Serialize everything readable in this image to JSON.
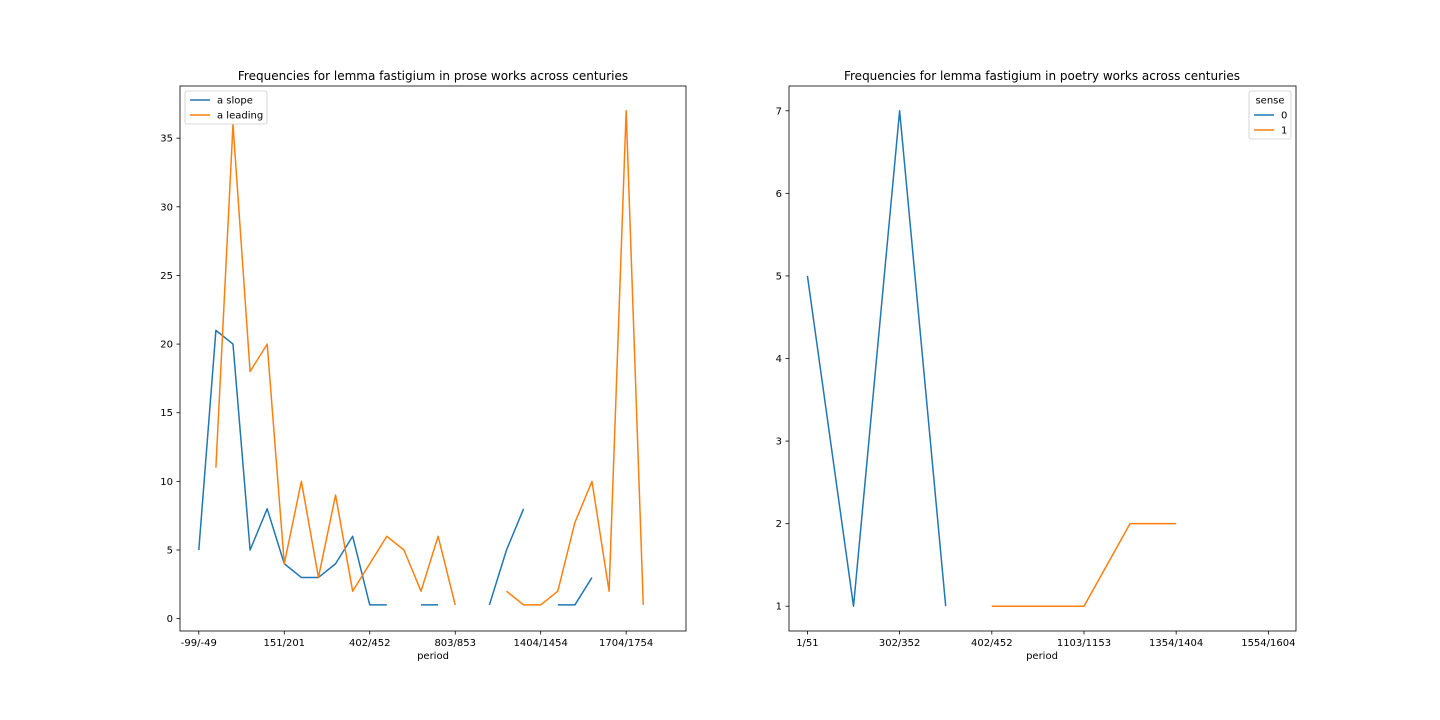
{
  "chart_data": [
    {
      "type": "line",
      "title": "Frequencies for lemma fastigium in prose works across centuries",
      "xlabel": "period",
      "ylabel": "",
      "ylim": [
        -0.9,
        38.8
      ],
      "yticks": [
        0,
        5,
        10,
        15,
        20,
        25,
        30,
        35
      ],
      "xlim": [
        -1.1,
        28.5
      ],
      "x_tick_positions": [
        0,
        5,
        10,
        15,
        20,
        25
      ],
      "x_tick_labels": [
        "-99/-49",
        "151/201",
        "402/452",
        "803/853",
        "1404/1454",
        "1704/1754"
      ],
      "legend": {
        "title": "",
        "position": "upper-left",
        "entries": [
          "a slope",
          "a leading"
        ]
      },
      "series": [
        {
          "name": "a slope",
          "color": "#1f77b4",
          "x": [
            0,
            1,
            2,
            3,
            4,
            5,
            6,
            7,
            8,
            9,
            10,
            11,
            12,
            13,
            14,
            15,
            16,
            17,
            18,
            19,
            20,
            21,
            22,
            23,
            24,
            25,
            26
          ],
          "values": [
            5,
            21,
            20,
            5,
            8,
            4,
            3,
            3,
            4,
            6,
            1,
            1,
            null,
            1,
            1,
            null,
            null,
            1,
            5,
            8,
            null,
            1,
            1,
            3,
            null,
            null,
            null
          ]
        },
        {
          "name": "a leading",
          "color": "#ff7f0e",
          "x": [
            0,
            1,
            2,
            3,
            4,
            5,
            6,
            7,
            8,
            9,
            10,
            11,
            12,
            13,
            14,
            15,
            16,
            17,
            18,
            19,
            20,
            21,
            22,
            23,
            24,
            25,
            26
          ],
          "values": [
            null,
            11,
            36,
            18,
            20,
            4,
            10,
            3,
            9,
            2,
            4,
            6,
            5,
            2,
            6,
            1,
            null,
            null,
            2,
            1,
            1,
            2,
            7,
            10,
            2,
            37,
            1
          ]
        }
      ]
    },
    {
      "type": "line",
      "title": "Frequencies for lemma fastigium in poetry works across centuries",
      "xlabel": "period",
      "ylabel": "",
      "ylim": [
        0.7,
        7.3
      ],
      "yticks": [
        1,
        2,
        3,
        4,
        5,
        6,
        7
      ],
      "xlim": [
        -0.4,
        10.6
      ],
      "x_tick_positions": [
        0,
        2,
        4,
        6,
        8,
        10
      ],
      "x_tick_labels": [
        "1/51",
        "302/352",
        "402/452",
        "1103/1153",
        "1354/1404",
        "1554/1604"
      ],
      "legend": {
        "title": "sense",
        "position": "upper-right",
        "entries": [
          "0",
          "1"
        ]
      },
      "series": [
        {
          "name": "0",
          "color": "#1f77b4",
          "x": [
            0,
            1,
            2,
            3,
            4,
            5,
            6,
            7,
            8,
            9,
            10
          ],
          "values": [
            5,
            1,
            7,
            1,
            null,
            null,
            null,
            null,
            null,
            null,
            null
          ]
        },
        {
          "name": "1",
          "color": "#ff7f0e",
          "x": [
            0,
            1,
            2,
            3,
            4,
            5,
            6,
            7,
            8,
            9,
            10
          ],
          "values": [
            null,
            null,
            null,
            null,
            1,
            1,
            1,
            2,
            2,
            null,
            null
          ]
        }
      ]
    }
  ]
}
